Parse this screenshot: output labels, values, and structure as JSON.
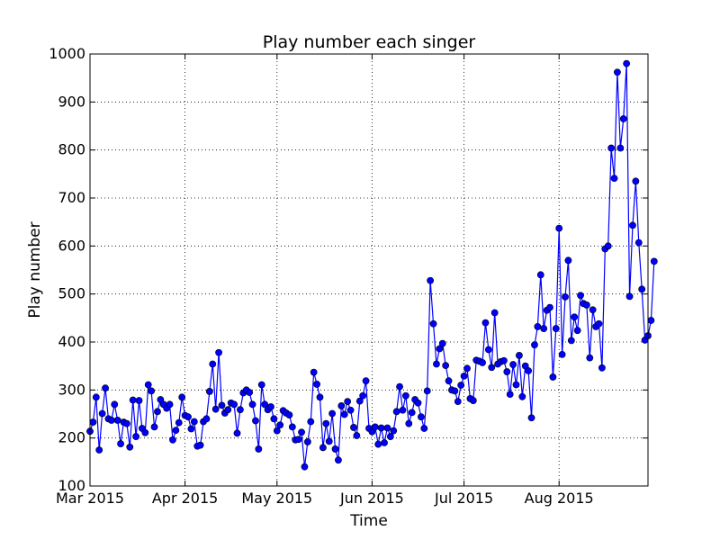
{
  "chart_data": {
    "type": "line",
    "title": "Play number each singer",
    "xlabel": "Time",
    "ylabel": "Play number",
    "grid": true,
    "x_range": [
      "2015-03-01",
      "2015-08-30"
    ],
    "ylim": [
      100,
      1000
    ],
    "x_ticks": [
      {
        "date": "2015-03-01",
        "label": "Mar 2015"
      },
      {
        "date": "2015-04-01",
        "label": "Apr 2015"
      },
      {
        "date": "2015-05-01",
        "label": "May 2015"
      },
      {
        "date": "2015-06-01",
        "label": "Jun 2015"
      },
      {
        "date": "2015-07-01",
        "label": "Jul 2015"
      },
      {
        "date": "2015-08-01",
        "label": "Aug 2015"
      }
    ],
    "y_ticks": [
      100,
      200,
      300,
      400,
      500,
      600,
      700,
      800,
      900,
      1000
    ],
    "series": [
      {
        "color": "#0000ff",
        "marker": "circle",
        "x_start": "2015-03-01",
        "x_step": "1 day",
        "values": [
          214,
          233,
          285,
          175,
          251,
          304,
          240,
          237,
          270,
          237,
          188,
          233,
          230,
          181,
          279,
          203,
          278,
          220,
          211,
          311,
          298,
          223,
          255,
          280,
          270,
          262,
          270,
          196,
          216,
          232,
          285,
          247,
          244,
          219,
          234,
          183,
          185,
          234,
          240,
          297,
          354,
          260,
          378,
          268,
          252,
          259,
          273,
          270,
          210,
          259,
          294,
          300,
          295,
          270,
          236,
          177,
          311,
          270,
          259,
          265,
          240,
          215,
          227,
          257,
          252,
          248,
          223,
          196,
          197,
          212,
          140,
          192,
          234,
          337,
          312,
          285,
          180,
          230,
          193,
          251,
          177,
          154,
          267,
          249,
          276,
          258,
          222,
          205,
          277,
          288,
          319,
          220,
          213,
          223,
          187,
          221,
          190,
          221,
          203,
          215,
          255,
          307,
          258,
          288,
          230,
          253,
          280,
          273,
          244,
          220,
          298,
          528,
          438,
          354,
          386,
          397,
          351,
          319,
          300,
          298,
          276,
          310,
          329,
          345,
          282,
          278,
          362,
          360,
          357,
          440,
          384,
          347,
          461,
          354,
          359,
          361,
          338,
          291,
          353,
          311,
          372,
          286,
          350,
          340,
          242,
          394,
          432,
          540,
          428,
          466,
          472,
          327,
          428,
          637,
          374,
          494,
          570,
          403,
          452,
          424,
          497,
          480,
          477,
          367,
          467,
          432,
          438,
          346,
          594,
          600,
          804,
          741,
          962,
          804,
          865,
          980,
          495,
          643,
          735,
          607,
          510,
          404,
          413,
          445,
          568
        ]
      }
    ]
  }
}
